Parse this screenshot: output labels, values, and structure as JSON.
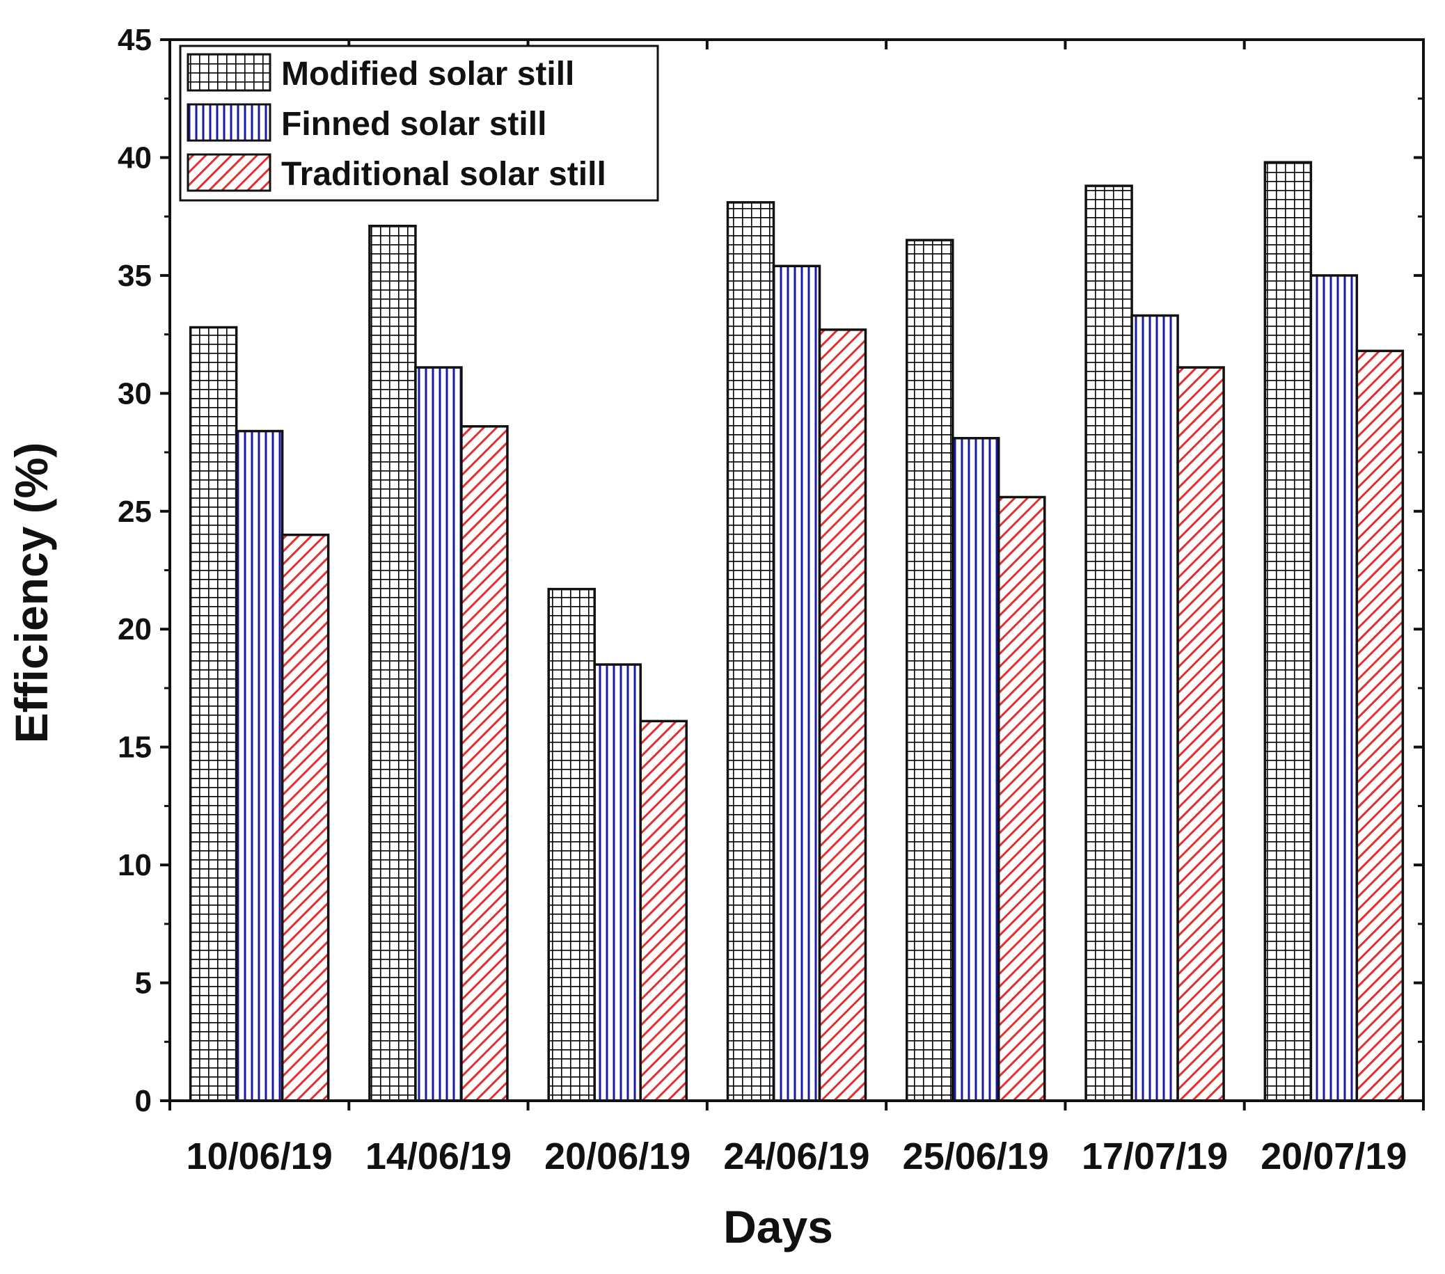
{
  "chart_data": {
    "type": "bar",
    "title": "",
    "xlabel": "Days",
    "ylabel": "Efficiency (%)",
    "ylim": [
      0,
      45
    ],
    "yticks": [
      "0",
      "5",
      "10",
      "15",
      "20",
      "25",
      "30",
      "35",
      "40",
      "45"
    ],
    "grid": false,
    "legend_position": "top-left",
    "categories": [
      "10/06/19",
      "14/06/19",
      "20/06/19",
      "24/06/19",
      "25/06/19",
      "17/07/19",
      "20/07/19"
    ],
    "series": [
      {
        "name": "Modified solar still",
        "pattern": "grid",
        "color": "#000000",
        "values": [
          32.8,
          37.1,
          21.7,
          38.1,
          36.5,
          38.8,
          39.8
        ]
      },
      {
        "name": "Finned solar still",
        "pattern": "vertical-lines",
        "color": "#1a1aa6",
        "values": [
          28.4,
          31.1,
          18.5,
          35.4,
          28.1,
          33.3,
          35.0
        ]
      },
      {
        "name": "Traditional solar still",
        "pattern": "diagonal-lines",
        "color": "#e03030",
        "values": [
          24.0,
          28.6,
          16.1,
          32.7,
          25.6,
          31.1,
          31.8
        ]
      }
    ]
  }
}
